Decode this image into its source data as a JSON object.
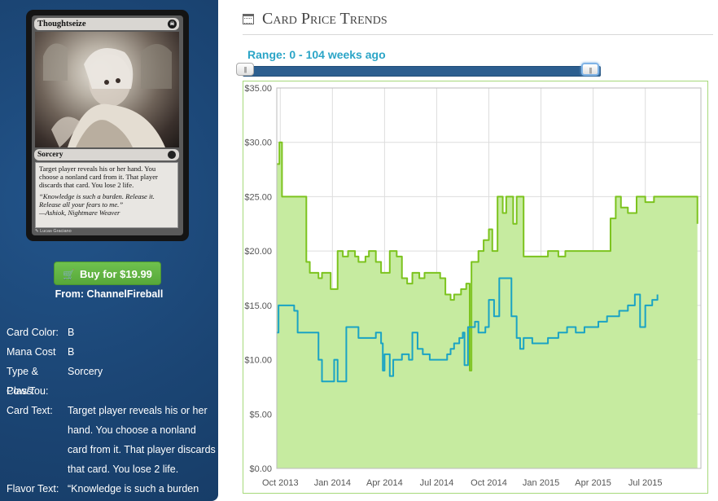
{
  "card": {
    "name": "Thoughtseize",
    "type_line": "Sorcery",
    "rules_text": "Target player reveals his or her hand. You choose a nonland card from it. That player discards that card. You lose 2 life.",
    "flavor_text": "“Knowledge is such a burden. Release it. Release all your fears to me.”",
    "flavor_attr": "—Ashiok, Nightmare Weaver",
    "artist": "Lucas Graciano",
    "mana_symbol_icon": "black-mana-symbol"
  },
  "buy": {
    "label": "Buy for $19.99",
    "from": "From: ChannelFireball",
    "icon": "cart-icon"
  },
  "info": [
    {
      "label": "Card Color:",
      "value": "B"
    },
    {
      "label": "Mana Cost",
      "value": "B"
    },
    {
      "label": "Type & Class:",
      "value": "Sorcery"
    },
    {
      "label": "Pow/Tou:",
      "value": ""
    },
    {
      "label": "Card Text:",
      "value": "Target player reveals his or her hand. You choose a nonland card from it. That player discards that card. You lose 2 life."
    },
    {
      "label": "Flavor Text:",
      "value": "“Knowledge is such a burden"
    }
  ],
  "header": {
    "title": "Card Price Trends",
    "icon": "calendar-icon"
  },
  "range": {
    "label": "Range: 0 - 104 weeks ago"
  },
  "colors": {
    "sidebar": "#1d4a7a",
    "button": "#5fb443",
    "series_paper": "#7cc31e",
    "series_online": "#1aa3c4",
    "fill": "#c6eba0",
    "range_text": "#2ba5c7"
  },
  "chart_data": {
    "type": "area",
    "x_unit": "months since Sep 2013",
    "xlim": [
      0.8,
      25.2
    ],
    "ylim": [
      0,
      35
    ],
    "y_ticks": [
      "$0.00",
      "$5.00",
      "$10.00",
      "$15.00",
      "$20.00",
      "$25.00",
      "$30.00",
      "$35.00"
    ],
    "x_ticks": [
      {
        "label": "Oct 2013",
        "x": 1
      },
      {
        "label": "Jan 2014",
        "x": 4
      },
      {
        "label": "Apr 2014",
        "x": 7
      },
      {
        "label": "Jul 2014",
        "x": 10
      },
      {
        "label": "Oct 2014",
        "x": 13
      },
      {
        "label": "Jan 2015",
        "x": 16
      },
      {
        "label": "Apr 2015",
        "x": 19
      },
      {
        "label": "Jul 2015",
        "x": 22
      }
    ],
    "grid": true,
    "series": [
      {
        "name": "",
        "color": "#7cc31e",
        "filled": true,
        "points": [
          [
            0.8,
            28
          ],
          [
            0.95,
            30
          ],
          [
            1.1,
            25
          ],
          [
            2.3,
            25
          ],
          [
            2.5,
            19
          ],
          [
            2.7,
            18
          ],
          [
            3.0,
            18
          ],
          [
            3.2,
            17.5
          ],
          [
            3.4,
            18
          ],
          [
            3.8,
            18
          ],
          [
            3.9,
            16.5
          ],
          [
            4.2,
            16.5
          ],
          [
            4.3,
            20
          ],
          [
            4.6,
            19.5
          ],
          [
            4.9,
            20
          ],
          [
            5.3,
            19.5
          ],
          [
            5.5,
            19
          ],
          [
            5.9,
            19.5
          ],
          [
            6.1,
            20
          ],
          [
            6.5,
            19
          ],
          [
            6.8,
            18
          ],
          [
            7.0,
            18
          ],
          [
            7.3,
            20
          ],
          [
            7.7,
            19.5
          ],
          [
            8.0,
            17.5
          ],
          [
            8.3,
            17
          ],
          [
            8.6,
            18
          ],
          [
            9.0,
            17.5
          ],
          [
            9.3,
            18
          ],
          [
            10.2,
            17.5
          ],
          [
            10.5,
            16
          ],
          [
            10.8,
            15.5
          ],
          [
            11.0,
            16
          ],
          [
            11.4,
            16.5
          ],
          [
            11.7,
            17
          ],
          [
            11.9,
            9
          ],
          [
            12.0,
            19
          ],
          [
            12.4,
            20
          ],
          [
            12.7,
            21
          ],
          [
            13.0,
            22
          ],
          [
            13.2,
            20
          ],
          [
            13.5,
            25
          ],
          [
            13.8,
            23.5
          ],
          [
            14.0,
            25
          ],
          [
            14.4,
            22.5
          ],
          [
            14.6,
            25
          ],
          [
            15.0,
            19.5
          ],
          [
            15.4,
            19.5
          ],
          [
            16.0,
            19.5
          ],
          [
            16.4,
            20
          ],
          [
            17.0,
            19.5
          ],
          [
            17.4,
            20
          ],
          [
            18.0,
            20
          ],
          [
            19.0,
            20
          ],
          [
            19.5,
            20
          ],
          [
            20.0,
            23
          ],
          [
            20.3,
            25
          ],
          [
            20.6,
            24
          ],
          [
            21.0,
            23.5
          ],
          [
            21.5,
            25
          ],
          [
            22.0,
            24.5
          ],
          [
            22.5,
            25
          ],
          [
            24.0,
            25
          ],
          [
            24.6,
            25
          ],
          [
            25.0,
            22.5
          ]
        ]
      },
      {
        "name": "",
        "color": "#1aa3c4",
        "filled": false,
        "points": [
          [
            0.8,
            12.5
          ],
          [
            0.9,
            15
          ],
          [
            1.3,
            15
          ],
          [
            1.6,
            15
          ],
          [
            1.8,
            14.5
          ],
          [
            2.0,
            12.5
          ],
          [
            3.0,
            12.5
          ],
          [
            3.2,
            10
          ],
          [
            3.4,
            8
          ],
          [
            4.0,
            8
          ],
          [
            4.1,
            10
          ],
          [
            4.3,
            8
          ],
          [
            4.6,
            8
          ],
          [
            4.8,
            13
          ],
          [
            5.3,
            13
          ],
          [
            5.5,
            12
          ],
          [
            6.0,
            12
          ],
          [
            6.5,
            12.5
          ],
          [
            6.8,
            11.5
          ],
          [
            6.9,
            9
          ],
          [
            7.0,
            10.5
          ],
          [
            7.3,
            8.5
          ],
          [
            7.5,
            10
          ],
          [
            7.8,
            10
          ],
          [
            8.0,
            10.5
          ],
          [
            8.4,
            10
          ],
          [
            8.6,
            12.5
          ],
          [
            8.9,
            11
          ],
          [
            9.2,
            10.5
          ],
          [
            9.6,
            10
          ],
          [
            10.0,
            10
          ],
          [
            10.6,
            10.5
          ],
          [
            10.8,
            11
          ],
          [
            11.0,
            11.5
          ],
          [
            11.3,
            12
          ],
          [
            11.5,
            12.5
          ],
          [
            11.6,
            9.5
          ],
          [
            11.8,
            13
          ],
          [
            12.2,
            13.5
          ],
          [
            12.4,
            12.5
          ],
          [
            12.8,
            13
          ],
          [
            13.0,
            15.5
          ],
          [
            13.3,
            14
          ],
          [
            13.6,
            17.5
          ],
          [
            14.0,
            17.5
          ],
          [
            14.3,
            14
          ],
          [
            14.6,
            12
          ],
          [
            14.8,
            11
          ],
          [
            15.0,
            12
          ],
          [
            15.5,
            11.5
          ],
          [
            16.0,
            11.5
          ],
          [
            16.4,
            12
          ],
          [
            17.0,
            12.5
          ],
          [
            17.5,
            13
          ],
          [
            18.0,
            12.5
          ],
          [
            18.5,
            13
          ],
          [
            19.0,
            13
          ],
          [
            19.3,
            13.5
          ],
          [
            19.8,
            14
          ],
          [
            20.2,
            14
          ],
          [
            20.5,
            14.5
          ],
          [
            21.0,
            15
          ],
          [
            21.4,
            16
          ],
          [
            21.7,
            13
          ],
          [
            22.0,
            15
          ],
          [
            22.4,
            15.5
          ],
          [
            22.7,
            16
          ]
        ]
      }
    ]
  }
}
